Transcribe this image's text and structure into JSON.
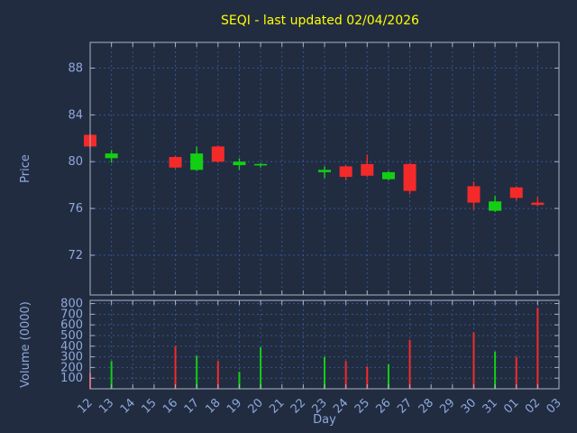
{
  "title": "SEQI - last updated 02/04/2026",
  "colors": {
    "background": "#212c40",
    "title": "#ffff00",
    "text": "#8fa8dc",
    "grid": "#35548e",
    "frame": "#aab4c8",
    "up": "#13cf13",
    "down": "#f42a2a"
  },
  "chart_data": {
    "type": "candlestick",
    "title": "SEQI - last updated 02/04/2026",
    "xlabel": "Day",
    "ylabel_price": "Price",
    "ylabel_volume": "Volume (0000)",
    "legend": "none",
    "grid": "on",
    "price_range": [
      68.6,
      90.2
    ],
    "price_ticks": [
      72,
      76,
      80,
      84,
      88
    ],
    "volume_range": [
      0,
      830
    ],
    "volume_ticks": [
      100,
      200,
      300,
      400,
      500,
      600,
      700,
      800
    ],
    "categories": [
      "12",
      "13",
      "14",
      "15",
      "16",
      "17",
      "18",
      "19",
      "20",
      "21",
      "22",
      "23",
      "24",
      "25",
      "26",
      "27",
      "28",
      "29",
      "30",
      "31",
      "01",
      "02",
      "03"
    ],
    "ohlc": [
      {
        "day": "12",
        "open": 82.3,
        "high": 82.4,
        "low": 81.2,
        "close": 81.3,
        "volume": 150
      },
      {
        "day": "13",
        "open": 80.3,
        "high": 81.0,
        "low": 79.9,
        "close": 80.7,
        "volume": 260
      },
      null,
      null,
      {
        "day": "16",
        "open": 80.4,
        "high": 80.5,
        "low": 79.4,
        "close": 79.5,
        "volume": 400
      },
      {
        "day": "17",
        "open": 79.3,
        "high": 81.3,
        "low": 79.2,
        "close": 80.7,
        "volume": 310
      },
      {
        "day": "18",
        "open": 81.3,
        "high": 81.4,
        "low": 79.9,
        "close": 80.0,
        "volume": 260
      },
      {
        "day": "19",
        "open": 79.7,
        "high": 80.3,
        "low": 79.3,
        "close": 80.0,
        "volume": 160
      },
      {
        "day": "20",
        "open": 79.7,
        "high": 79.9,
        "low": 79.5,
        "close": 79.8,
        "volume": 390
      },
      null,
      null,
      {
        "day": "23",
        "open": 79.1,
        "high": 79.6,
        "low": 78.6,
        "close": 79.3,
        "volume": 300
      },
      {
        "day": "24",
        "open": 79.6,
        "high": 79.7,
        "low": 78.4,
        "close": 78.7,
        "volume": 260
      },
      {
        "day": "25",
        "open": 79.8,
        "high": 80.6,
        "low": 78.7,
        "close": 78.8,
        "volume": 210
      },
      {
        "day": "26",
        "open": 78.5,
        "high": 79.2,
        "low": 78.4,
        "close": 79.1,
        "volume": 230
      },
      {
        "day": "27",
        "open": 79.8,
        "high": 79.9,
        "low": 77.2,
        "close": 77.5,
        "volume": 460
      },
      null,
      null,
      {
        "day": "30",
        "open": 77.9,
        "high": 78.3,
        "low": 75.9,
        "close": 76.5,
        "volume": 530
      },
      {
        "day": "31",
        "open": 75.8,
        "high": 77.1,
        "low": 75.7,
        "close": 76.6,
        "volume": 350
      },
      {
        "day": "01",
        "open": 77.8,
        "high": 77.9,
        "low": 76.7,
        "close": 76.9,
        "volume": 300
      },
      {
        "day": "02",
        "open": 76.5,
        "high": 77.0,
        "low": 76.2,
        "close": 76.3,
        "volume": 760
      },
      null
    ]
  }
}
